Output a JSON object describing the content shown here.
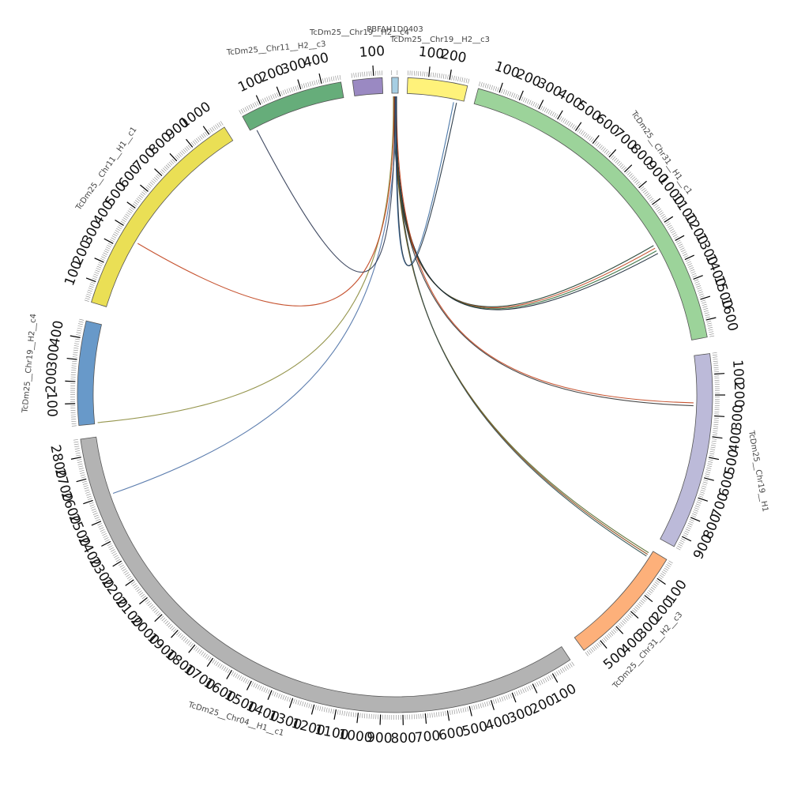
{
  "chart_data": {
    "type": "chord",
    "segments": [
      {
        "name": "PBFAH1D0403",
        "length": 12,
        "color": "#a6cee3",
        "ticks": []
      },
      {
        "name": "TcDm25__Chr19__H2__c3",
        "length": 290,
        "color": "#fff27a",
        "ticks": [
          100,
          200
        ]
      },
      {
        "name": "TcDm25__Chr31__H1__c1",
        "length": 1680,
        "color": "#9cd39a",
        "ticks": [
          100,
          200,
          300,
          400,
          500,
          600,
          700,
          800,
          900,
          1000,
          1100,
          1200,
          1300,
          1400,
          1500,
          1600
        ]
      },
      {
        "name": "TcDm25__Chr19__H1",
        "length": 960,
        "color": "#bcbad9",
        "ticks": [
          100,
          200,
          300,
          400,
          500,
          600,
          700,
          800,
          900
        ]
      },
      {
        "name": "TcDm25__Chr31__H2__c3",
        "length": 590,
        "color": "#fdb07a",
        "ticks": [
          100,
          200,
          300,
          400,
          500
        ]
      },
      {
        "name": "TcDm25__Chr04__H1__c1",
        "length": 2880,
        "color": "#b3b3b3",
        "ticks": [
          100,
          200,
          300,
          400,
          500,
          600,
          700,
          800,
          900,
          1000,
          1100,
          1200,
          1300,
          1400,
          1500,
          1600,
          1700,
          1800,
          1900,
          2000,
          2100,
          2200,
          2300,
          2400,
          2500,
          2600,
          2700,
          2800
        ]
      },
      {
        "name": "TcDm25__Chr19__H2__c4",
        "length": 480,
        "color": "#6899c9",
        "ticks": [
          100,
          200,
          300,
          400
        ]
      },
      {
        "name": "TcDm25__Chr11__H1__c1",
        "length": 1080,
        "color": "#eadf55",
        "ticks": [
          100,
          200,
          300,
          400,
          500,
          600,
          700,
          800,
          900,
          1000
        ]
      },
      {
        "name": "TcDm25__Chr11__H2__c3",
        "length": 490,
        "color": "#66ad7a",
        "ticks": [
          100,
          200,
          300,
          400
        ]
      },
      {
        "name": "TcDm25__Chr19__H2__c4b",
        "length": 140,
        "color": "#9a89c2",
        "ticks": [
          100
        ]
      }
    ],
    "links": [
      {
        "from": "PBFAH1D0403",
        "to": "TcDm25__Chr31__H1__c1",
        "pos": 1170,
        "color": "#1a3a2a"
      },
      {
        "from": "PBFAH1D0403",
        "to": "TcDm25__Chr31__H1__c1",
        "pos": 1185,
        "color": "#c0401a"
      },
      {
        "from": "PBFAH1D0403",
        "to": "TcDm25__Chr31__H1__c1",
        "pos": 1200,
        "color": "#2f6b3a"
      },
      {
        "from": "PBFAH1D0403",
        "to": "TcDm25__Chr31__H1__c1",
        "pos": 1215,
        "color": "#0f1f2f"
      },
      {
        "from": "PBFAH1D0403",
        "to": "TcDm25__Chr19__H1",
        "pos": 240,
        "color": "#c0401a"
      },
      {
        "from": "PBFAH1D0403",
        "to": "TcDm25__Chr19__H1",
        "pos": 255,
        "color": "#333333"
      },
      {
        "from": "PBFAH1D0403",
        "to": "TcDm25__Chr31__H2__c3",
        "pos": 18,
        "color": "#556b2f"
      },
      {
        "from": "PBFAH1D0403",
        "to": "TcDm25__Chr31__H2__c3",
        "pos": 28,
        "color": "#8b4513"
      },
      {
        "from": "PBFAH1D0403",
        "to": "TcDm25__Chr31__H2__c3",
        "pos": 38,
        "color": "#2f4f4f"
      },
      {
        "from": "PBFAH1D0403",
        "to": "TcDm25__Chr04__H1__c1",
        "pos": 2600,
        "color": "#4a6fa5"
      },
      {
        "from": "PBFAH1D0403",
        "to": "TcDm25__Chr19__H2__c4",
        "pos": 5,
        "color": "#8a8a3a"
      },
      {
        "from": "PBFAH1D0403",
        "to": "TcDm25__Chr11__H1__c1",
        "pos": 360,
        "color": "#c0401a"
      },
      {
        "from": "PBFAH1D0403",
        "to": "TcDm25__Chr11__H2__c3",
        "pos": 30,
        "color": "#2a3550"
      },
      {
        "from": "PBFAH1D0403",
        "to": "TcDm25__Chr19__H2__c3",
        "pos": 240,
        "color": "#3a6aa0"
      },
      {
        "from": "PBFAH1D0403",
        "to": "TcDm25__Chr19__H2__c3",
        "pos": 255,
        "color": "#1a2a3a"
      }
    ]
  }
}
